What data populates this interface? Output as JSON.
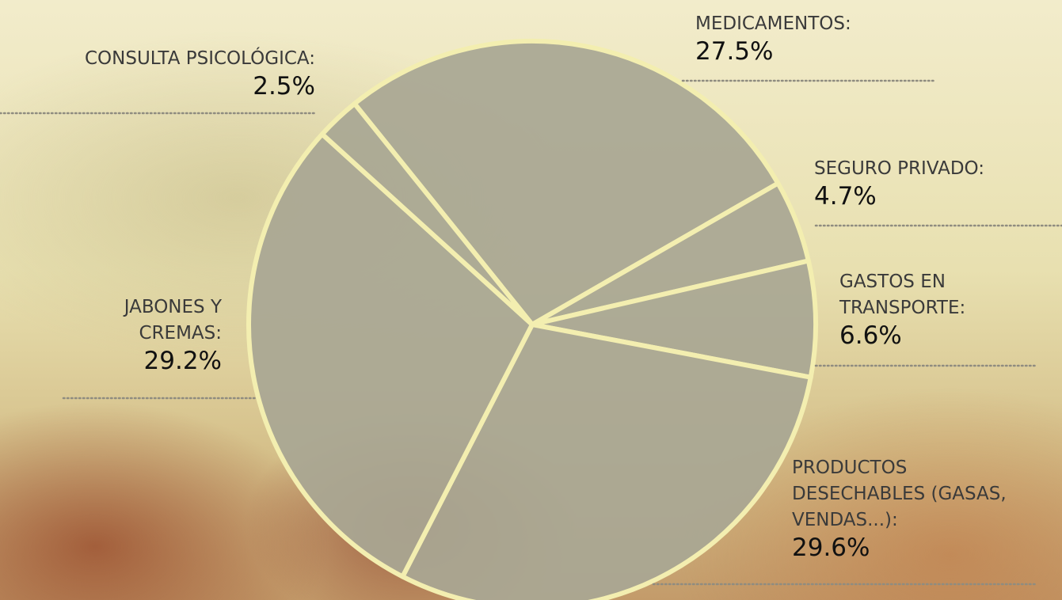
{
  "chart_data": {
    "type": "pie",
    "categories": [
      "MEDICAMENTOS:",
      "SEGURO PRIVADO:",
      "GASTOS EN TRANSPORTE:",
      "PRODUCTOS DESECHABLES (GASAS, VENDAS...):",
      "JABONES Y CREMAS:",
      "CONSULTA PSICOLÓGICA:"
    ],
    "values": [
      27.5,
      4.7,
      6.6,
      29.6,
      29.2,
      2.5
    ],
    "value_labels": [
      "27.5%",
      "4.7%",
      "6.6%",
      "29.6%",
      "29.2%",
      "2.5%"
    ],
    "color": "#a9a793"
  }
}
